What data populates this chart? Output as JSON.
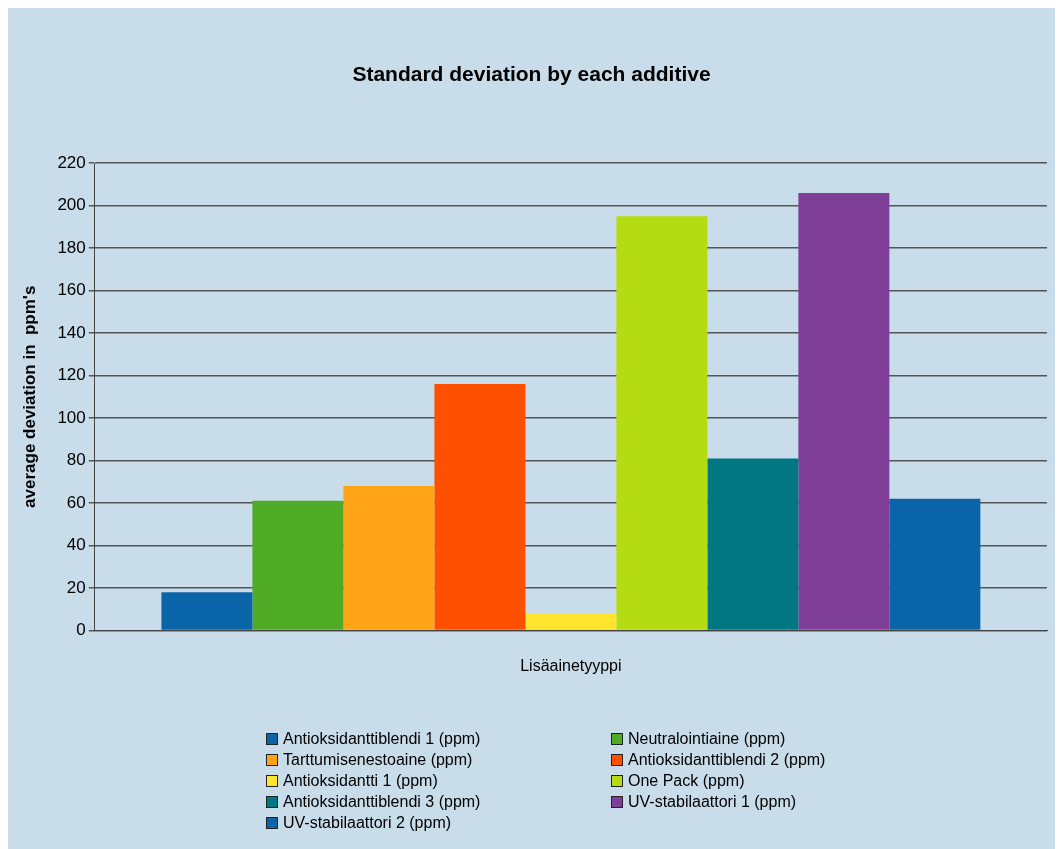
{
  "chart_data": {
    "type": "bar",
    "title": "Standard deviation by each additive",
    "xlabel": "Lisäainetyyppi",
    "ylabel": "average deviation in  ppm's",
    "categories": [
      null
    ],
    "series": [
      {
        "name": "Antioksidanttiblendi 1 (ppm)",
        "color": "#0a64a8",
        "values": [
          18
        ]
      },
      {
        "name": "Neutralointiaine (ppm)",
        "color": "#4fab25",
        "values": [
          61
        ]
      },
      {
        "name": "Tarttumisenestoaine (ppm)",
        "color": "#ffa317",
        "values": [
          68
        ]
      },
      {
        "name": "Antioksidanttiblendi 2 (ppm)",
        "color": "#ff5000",
        "values": [
          116
        ]
      },
      {
        "name": "Antioksidantti 1 (ppm)",
        "color": "#ffe52e",
        "values": [
          8
        ]
      },
      {
        "name": "One Pack (ppm)",
        "color": "#b5dc12",
        "values": [
          195
        ]
      },
      {
        "name": "Antioksidanttiblendi 3 (ppm)",
        "color": "#007782",
        "values": [
          81
        ]
      },
      {
        "name": "UV-stabilaattori 1 (ppm)",
        "color": "#7f3f98",
        "values": [
          206
        ]
      },
      {
        "name": "UV-stabilaattori 2 (ppm)",
        "color": "#0a64a8",
        "values": [
          62
        ]
      }
    ],
    "ylim": [
      0,
      220
    ],
    "yticks": [
      0,
      20,
      40,
      60,
      80,
      100,
      120,
      140,
      160,
      180,
      200,
      220
    ],
    "grid": "y",
    "legend": "bottom"
  }
}
